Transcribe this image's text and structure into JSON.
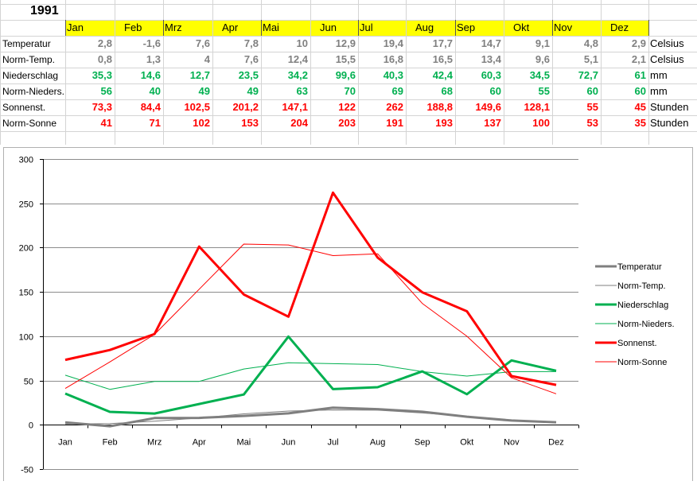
{
  "sheet": {
    "year": "1991",
    "month_headers": [
      "Jan",
      "Feb",
      "Mrz",
      "Apr",
      "Mai",
      "Jun",
      "Jul",
      "Aug",
      "Sep",
      "Okt",
      "Nov",
      "Dez"
    ],
    "rows": [
      {
        "label": "Temperatur",
        "values": [
          "2,8",
          "-1,6",
          "7,6",
          "7,8",
          "10",
          "12,9",
          "19,4",
          "17,7",
          "14,7",
          "9,1",
          "4,8",
          "2,9"
        ],
        "unit": "Celsius",
        "color": "#808080"
      },
      {
        "label": "Norm-Temp.",
        "values": [
          "0,8",
          "1,3",
          "4",
          "7,6",
          "12,4",
          "15,5",
          "16,8",
          "16,5",
          "13,4",
          "9,6",
          "5,1",
          "2,1"
        ],
        "unit": "Celsius",
        "color": "#808080"
      },
      {
        "label": "Niederschlag",
        "values": [
          "35,3",
          "14,6",
          "12,7",
          "23,5",
          "34,2",
          "99,6",
          "40,3",
          "42,4",
          "60,3",
          "34,5",
          "72,7",
          "61"
        ],
        "unit": "mm",
        "color": "#00b050"
      },
      {
        "label": "Norm-Nieders.",
        "values": [
          "56",
          "40",
          "49",
          "49",
          "63",
          "70",
          "69",
          "68",
          "60",
          "55",
          "60",
          "60"
        ],
        "unit": "mm",
        "color": "#00b050"
      },
      {
        "label": "Sonnenst.",
        "values": [
          "73,3",
          "84,4",
          "102,5",
          "201,2",
          "147,1",
          "122",
          "262",
          "188,8",
          "149,6",
          "128,1",
          "55",
          "45"
        ],
        "unit": "Stunden",
        "color": "#ff0000"
      },
      {
        "label": "Norm-Sonne",
        "values": [
          "41",
          "71",
          "102",
          "153",
          "204",
          "203",
          "191",
          "193",
          "137",
          "100",
          "53",
          "35"
        ],
        "unit": "Stunden",
        "color": "#ff0000"
      }
    ],
    "header_fill": "#ffff00"
  },
  "chart_data": {
    "type": "line",
    "categories": [
      "Jan",
      "Feb",
      "Mrz",
      "Apr",
      "Mai",
      "Jun",
      "Jul",
      "Aug",
      "Sep",
      "Okt",
      "Nov",
      "Dez"
    ],
    "ylim": [
      -50,
      300
    ],
    "yticks": [
      -50,
      0,
      50,
      100,
      150,
      200,
      250,
      300
    ],
    "grid": true,
    "legend_position": "right",
    "series": [
      {
        "name": "Temperatur",
        "values": [
          2.8,
          -1.6,
          7.6,
          7.8,
          10,
          12.9,
          19.4,
          17.7,
          14.7,
          9.1,
          4.8,
          2.9
        ],
        "color": "#7f7f7f",
        "bold": true
      },
      {
        "name": "Norm-Temp.",
        "values": [
          0.8,
          1.3,
          4,
          7.6,
          12.4,
          15.5,
          16.8,
          16.5,
          13.4,
          9.6,
          5.1,
          2.1
        ],
        "color": "#7f7f7f",
        "bold": false
      },
      {
        "name": "Niederschlag",
        "values": [
          35.3,
          14.6,
          12.7,
          23.5,
          34.2,
          99.6,
          40.3,
          42.4,
          60.3,
          34.5,
          72.7,
          61
        ],
        "color": "#00b050",
        "bold": true
      },
      {
        "name": "Norm-Nieders.",
        "values": [
          56,
          40,
          49,
          49,
          63,
          70,
          69,
          68,
          60,
          55,
          60,
          60
        ],
        "color": "#00b050",
        "bold": false
      },
      {
        "name": "Sonnenst.",
        "values": [
          73.3,
          84.4,
          102.5,
          201.2,
          147.1,
          122,
          262,
          188.8,
          149.6,
          128.1,
          55,
          45
        ],
        "color": "#ff0000",
        "bold": true
      },
      {
        "name": "Norm-Sonne",
        "values": [
          41,
          71,
          102,
          153,
          204,
          203,
          191,
          193,
          137,
          100,
          53,
          35
        ],
        "color": "#ff0000",
        "bold": false
      }
    ]
  }
}
